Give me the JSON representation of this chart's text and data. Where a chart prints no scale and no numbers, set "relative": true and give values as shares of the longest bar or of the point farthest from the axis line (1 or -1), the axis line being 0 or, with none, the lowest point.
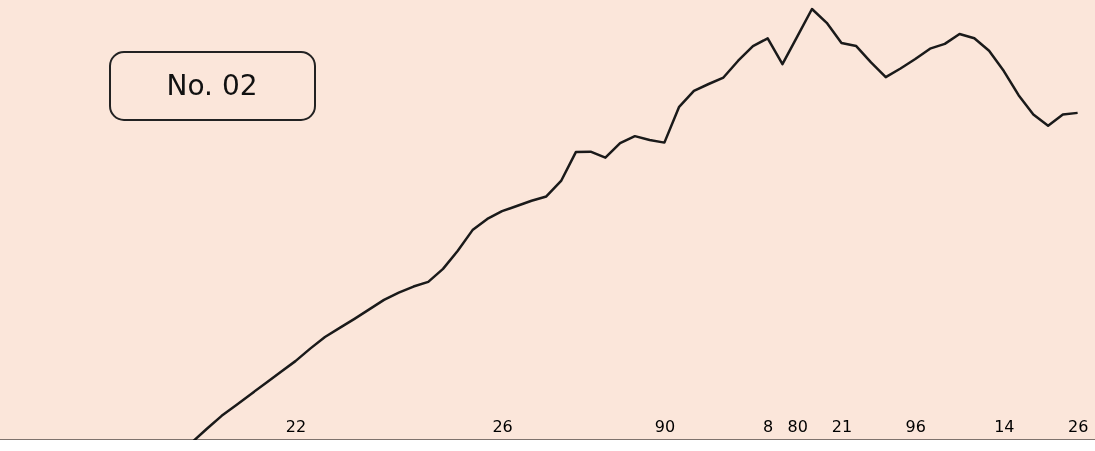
{
  "chart_data": {
    "type": "line",
    "relative": true,
    "annotations": [
      "No. 02"
    ],
    "categories": [
      null,
      null,
      null,
      null,
      null,
      null,
      null,
      null,
      "22",
      null,
      null,
      null,
      null,
      null,
      null,
      null,
      null,
      null,
      null,
      null,
      null,
      null,
      "26",
      null,
      null,
      null,
      null,
      null,
      null,
      null,
      null,
      null,
      null,
      "90",
      null,
      null,
      null,
      null,
      null,
      null,
      "8",
      null,
      "80",
      null,
      null,
      "21",
      null,
      null,
      null,
      null,
      "96",
      null,
      null,
      null,
      null,
      null,
      "14",
      null,
      null,
      null,
      null,
      "26"
    ],
    "series": [
      {
        "color": "#1a1a1a",
        "values": [
          null,
          -0.005,
          0.026,
          0.056,
          0.081,
          0.107,
          0.132,
          0.158,
          0.183,
          0.212,
          0.239,
          0.26,
          0.281,
          0.303,
          0.325,
          0.342,
          0.356,
          0.367,
          0.397,
          0.439,
          0.487,
          0.513,
          0.531,
          0.543,
          0.555,
          0.565,
          0.601,
          0.668,
          0.669,
          0.655,
          0.689,
          0.705,
          0.696,
          0.69,
          0.773,
          0.81,
          0.826,
          0.841,
          0.88,
          0.914,
          0.932,
          0.872,
          0.936,
          1,
          0.968,
          0.921,
          0.914,
          0.876,
          0.842,
          0.862,
          0.884,
          0.908,
          0.919,
          0.942,
          0.932,
          0.903,
          0.856,
          0.8,
          0.755,
          0.729,
          0.755,
          0.759
        ]
      }
    ],
    "marker": "none",
    "line_style": "solid"
  }
}
